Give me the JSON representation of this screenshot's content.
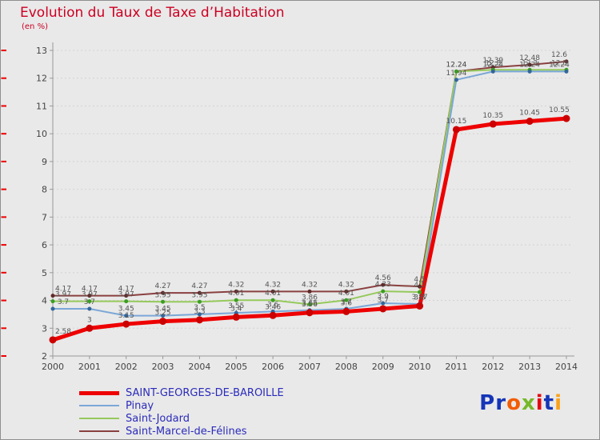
{
  "chart_data": {
    "type": "line",
    "title": "Evolution du Taux de Taxe d’Habitation",
    "subtitle": "(en %)",
    "x": [
      "2000",
      "2001",
      "2002",
      "2003",
      "2004",
      "2005",
      "2006",
      "2007",
      "2008",
      "2009",
      "2010",
      "2011",
      "2012",
      "2013",
      "2014"
    ],
    "ylim": [
      2,
      13
    ],
    "yticks": [
      2,
      3,
      4,
      5,
      6,
      7,
      8,
      9,
      10,
      11,
      12,
      13
    ],
    "grid": true,
    "legend_position": "bottom-left",
    "colors": {
      "edge_tick": "#ee0000",
      "axis": "#999999",
      "grid": "#d2d2d2",
      "value_label": "#555555",
      "tick_label": "#444444"
    },
    "series": [
      {
        "name": "SAINT-GEORGES-DE-BAROILLE",
        "color": "#ee0000",
        "marker_color": "#cc0000",
        "width": 5,
        "values": [
          2.58,
          3,
          3.15,
          3.25,
          3.3,
          3.4,
          3.46,
          3.56,
          3.6,
          3.7,
          3.8,
          10.15,
          10.35,
          10.45,
          10.55
        ],
        "labels": [
          "2.58",
          "3",
          "3.15",
          "3.25",
          "3.3",
          "3.4",
          "3.46",
          "3.56",
          "3.6",
          "3.7",
          "3.8",
          "10.15",
          "10.35",
          "10.45",
          "10.55"
        ]
      },
      {
        "name": "Pinay",
        "color": "#7ba7d7",
        "marker_color": "#336699",
        "width": 2,
        "values": [
          3.7,
          3.7,
          3.45,
          3.45,
          3.5,
          3.55,
          3.6,
          3.65,
          3.7,
          3.9,
          3.87,
          11.94,
          12.24,
          12.24,
          12.24
        ],
        "labels": [
          "3.7",
          "3.7",
          "3.45",
          "3.45",
          "3.5",
          "3.55",
          "3.6",
          "3.65",
          "3.7",
          "3.9",
          "3.87",
          "11.94",
          "12.24",
          "12.24",
          "12.24"
        ]
      },
      {
        "name": "Saint-Jodard",
        "color": "#96c95c",
        "marker_color": "#3a9d23",
        "width": 2,
        "values": [
          3.97,
          3.97,
          3.97,
          3.95,
          3.95,
          4.01,
          4.01,
          3.86,
          4.01,
          4.33,
          4.3,
          12.24,
          12.3,
          12.3,
          12.3
        ],
        "labels": [
          "3.97",
          "3.97",
          "3.97",
          "3.95",
          "3.95",
          "4.01",
          "4.01",
          "3.86",
          "4.01",
          "4.33",
          "4.3",
          "12.24",
          "12.3",
          "12.3",
          "12.3"
        ]
      },
      {
        "name": "Saint-Marcel-de-Félines",
        "color": "#8a4040",
        "marker_color": "#5f2a2a",
        "width": 2,
        "values": [
          4.17,
          4.17,
          4.17,
          4.27,
          4.27,
          4.32,
          4.32,
          4.32,
          4.32,
          4.56,
          4.5,
          12.24,
          12.39,
          12.48,
          12.6
        ],
        "labels": [
          "4.17",
          "4.17",
          "4.17",
          "4.27",
          "4.27",
          "4.32",
          "4.32",
          "4.32",
          "4.32",
          "4.56",
          "4.5",
          "12.24",
          "12.39",
          "12.48",
          "12.6"
        ]
      }
    ]
  },
  "logo": {
    "text": "Proxiti",
    "letters": [
      {
        "ch": "P",
        "color": "#1535b8"
      },
      {
        "ch": "r",
        "color": "#1535b8"
      },
      {
        "ch": "o",
        "color": "#f25c05"
      },
      {
        "ch": "x",
        "color": "#76b82a"
      },
      {
        "ch": "i",
        "color": "#e30613"
      },
      {
        "ch": "t",
        "color": "#1535b8"
      },
      {
        "ch": "i",
        "color": "#f9a11b"
      }
    ]
  }
}
